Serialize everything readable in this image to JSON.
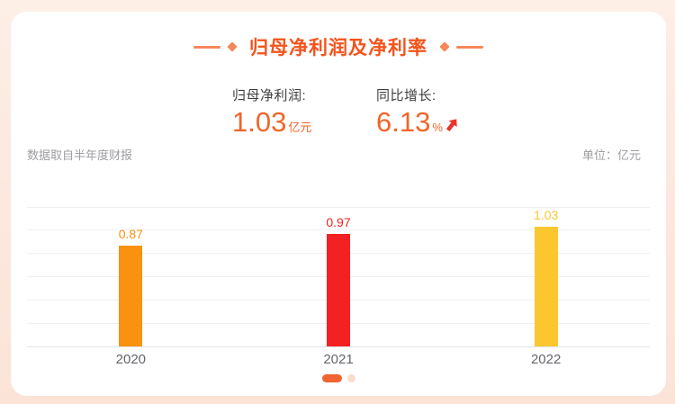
{
  "page": {
    "background_color": "#fce9df",
    "card_color": "#ffffff"
  },
  "header": {
    "title": "归母净利润及净利率",
    "accent_color": "#f4531b",
    "decoration_color": "#f5875b"
  },
  "stats": [
    {
      "label": "归母净利润:",
      "value": "1.03",
      "unit": "亿元",
      "color": "#f2652a"
    },
    {
      "label": "同比增长:",
      "value": "6.13",
      "unit": "%",
      "trend": "up",
      "trend_color": "#e63529",
      "color": "#f2652a"
    }
  ],
  "meta": {
    "source_note": "数据取自半年度财报",
    "unit_label": "单位：亿元"
  },
  "chart_data": {
    "type": "bar",
    "title": "归母净利润及净利率",
    "categories": [
      "2020",
      "2021",
      "2022"
    ],
    "values": [
      0.87,
      0.97,
      1.03
    ],
    "bar_colors": [
      "#f8920f",
      "#f32121",
      "#fcc62e"
    ],
    "unit": "亿元",
    "xlabel": "",
    "ylabel": "",
    "ylim": [
      0,
      1.2
    ],
    "grid": true,
    "gridline_step": 0.2,
    "value_labels": true,
    "legend": "none"
  },
  "pagination": {
    "active_index": 0,
    "dot_count": 2,
    "active_color": "#ef6430",
    "inactive_color": "#fbddcd"
  }
}
